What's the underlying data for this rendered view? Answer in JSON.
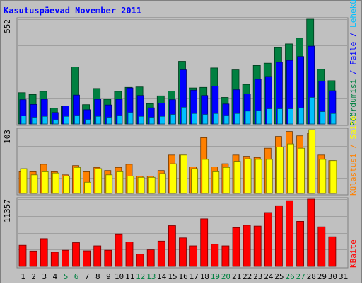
{
  "title": "Kasutuspäevad November 2011",
  "colors": {
    "background": "#c0c0c0",
    "frame": "#808080",
    "title": "#0000ff",
    "gridline": "#a0a0a0",
    "weekday_label": "#000000",
    "weekend_label": "#008040",
    "hits": "#008040",
    "files": "#0000ff",
    "pages": "#00c0ff",
    "visits": "#ff8000",
    "sites": "#ffff00",
    "kbytes": "#ff0000"
  },
  "chart_data": [
    {
      "type": "bar",
      "name": "hits-files-pages",
      "ymax_label": "552",
      "ylim": [
        0,
        552
      ],
      "categories": [
        "1",
        "2",
        "3",
        "4",
        "5",
        "6",
        "7",
        "8",
        "9",
        "10",
        "11",
        "12",
        "13",
        "14",
        "15",
        "16",
        "17",
        "18",
        "19",
        "20",
        "21",
        "22",
        "23",
        "24",
        "25",
        "26",
        "27",
        "28",
        "29",
        "30",
        "31"
      ],
      "series": [
        {
          "name": "Pöördumisi",
          "color_key": "hits",
          "values": [
            165,
            155,
            172,
            83,
            95,
            300,
            102,
            187,
            130,
            172,
            193,
            195,
            107,
            148,
            173,
            330,
            190,
            193,
            295,
            140,
            285,
            208,
            308,
            320,
            402,
            422,
            452,
            552,
            288,
            228,
            0
          ]
        },
        {
          "name": "Faile",
          "color_key": "files",
          "values": [
            128,
            103,
            130,
            60,
            95,
            152,
            75,
            130,
            100,
            130,
            190,
            150,
            85,
            110,
            128,
            285,
            178,
            150,
            200,
            105,
            180,
            158,
            235,
            250,
            325,
            335,
            355,
            410,
            225,
            175,
            0
          ]
        },
        {
          "name": "Lehekülgi",
          "color_key": "pages",
          "values": [
            43,
            35,
            40,
            22,
            40,
            45,
            23,
            40,
            35,
            45,
            60,
            40,
            35,
            40,
            50,
            88,
            55,
            50,
            55,
            45,
            55,
            68,
            70,
            80,
            80,
            80,
            85,
            140,
            65,
            55,
            0
          ]
        }
      ]
    },
    {
      "type": "bar",
      "name": "visits-sites",
      "ymax_label": "103",
      "ylim": [
        0,
        103
      ],
      "categories": [
        "1",
        "2",
        "3",
        "4",
        "5",
        "6",
        "7",
        "8",
        "9",
        "10",
        "11",
        "12",
        "13",
        "14",
        "15",
        "16",
        "17",
        "18",
        "19",
        "20",
        "21",
        "22",
        "23",
        "24",
        "25",
        "26",
        "27",
        "28",
        "29",
        "30",
        "31"
      ],
      "series": [
        {
          "name": "Külastusi",
          "color_key": "visits",
          "values": [
            35,
            35,
            47,
            35,
            30,
            45,
            35,
            42,
            37,
            42,
            47,
            28,
            28,
            37,
            62,
            62,
            43,
            90,
            43,
            48,
            62,
            60,
            58,
            73,
            92,
            100,
            93,
            97,
            62,
            53,
            0
          ]
        },
        {
          "name": "Saite",
          "color_key": "sites",
          "values": [
            40,
            30,
            35,
            33,
            28,
            42,
            18,
            40,
            30,
            35,
            28,
            26,
            26,
            32,
            48,
            62,
            40,
            55,
            35,
            42,
            52,
            56,
            55,
            55,
            75,
            80,
            73,
            103,
            55,
            53,
            0
          ]
        }
      ]
    },
    {
      "type": "bar",
      "name": "kbytes",
      "ymax_label": "11357",
      "ylim": [
        0,
        11357
      ],
      "categories": [
        "1",
        "2",
        "3",
        "4",
        "5",
        "6",
        "7",
        "8",
        "9",
        "10",
        "11",
        "12",
        "13",
        "14",
        "15",
        "16",
        "17",
        "18",
        "19",
        "20",
        "21",
        "22",
        "23",
        "24",
        "25",
        "26",
        "27",
        "28",
        "29",
        "30",
        "31"
      ],
      "series": [
        {
          "name": "KBaite",
          "color_key": "kbytes",
          "values": [
            3567,
            2600,
            4670,
            2400,
            2730,
            4000,
            2630,
            3470,
            2730,
            5470,
            4140,
            2070,
            2800,
            4270,
            6870,
            4800,
            3470,
            8020,
            3740,
            3470,
            6540,
            6940,
            6800,
            9080,
            10250,
            11090,
            7600,
            11357,
            6670,
            5000,
            0
          ]
        }
      ]
    }
  ],
  "x_labels": [
    {
      "text": "1",
      "weekend": false
    },
    {
      "text": "2",
      "weekend": false
    },
    {
      "text": "3",
      "weekend": false
    },
    {
      "text": "4",
      "weekend": false
    },
    {
      "text": "5",
      "weekend": true
    },
    {
      "text": "6",
      "weekend": true
    },
    {
      "text": "7",
      "weekend": false
    },
    {
      "text": "8",
      "weekend": false
    },
    {
      "text": "9",
      "weekend": false
    },
    {
      "text": "10",
      "weekend": false
    },
    {
      "text": "11",
      "weekend": false
    },
    {
      "text": "12",
      "weekend": true
    },
    {
      "text": "13",
      "weekend": true
    },
    {
      "text": "14",
      "weekend": false
    },
    {
      "text": "15",
      "weekend": false
    },
    {
      "text": "16",
      "weekend": false
    },
    {
      "text": "17",
      "weekend": false
    },
    {
      "text": "18",
      "weekend": false
    },
    {
      "text": "19",
      "weekend": true
    },
    {
      "text": "20",
      "weekend": true
    },
    {
      "text": "21",
      "weekend": false
    },
    {
      "text": "22",
      "weekend": false
    },
    {
      "text": "23",
      "weekend": false
    },
    {
      "text": "24",
      "weekend": false
    },
    {
      "text": "25",
      "weekend": false
    },
    {
      "text": "26",
      "weekend": true
    },
    {
      "text": "27",
      "weekend": true
    },
    {
      "text": "28",
      "weekend": false
    },
    {
      "text": "29",
      "weekend": false
    },
    {
      "text": "30",
      "weekend": false
    },
    {
      "text": "31",
      "weekend": false
    }
  ],
  "right_labels": {
    "top": [
      {
        "text": "Pöördumisi",
        "color_key": "hits"
      },
      {
        "text": " / ",
        "color_key": "files"
      },
      {
        "text": "Faile",
        "color_key": "files"
      },
      {
        "text": " / ",
        "color_key": "files"
      },
      {
        "text": "Lehekülgi",
        "color_key": "pages"
      }
    ],
    "middle": [
      {
        "text": "Külastusi",
        "color_key": "visits"
      },
      {
        "text": " / ",
        "color_key": "visits"
      },
      {
        "text": "Saite",
        "color_key": "sites"
      }
    ],
    "bottom": [
      {
        "text": "KBaite",
        "color_key": "kbytes"
      }
    ]
  }
}
